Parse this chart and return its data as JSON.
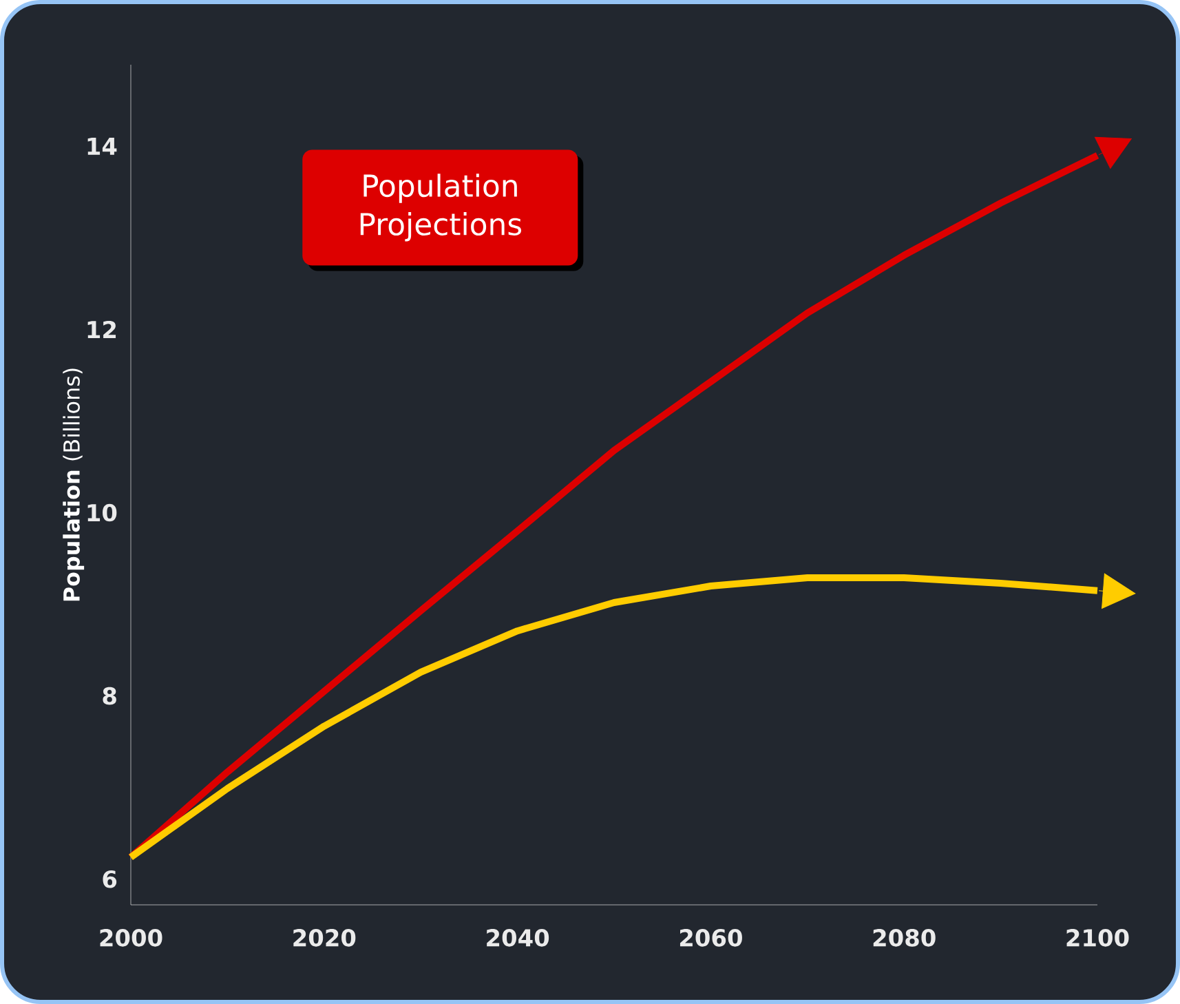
{
  "chart_data": {
    "type": "line",
    "title": "Population Projections",
    "ylabel": "**Population** (Billions)",
    "x": [
      2000,
      2010,
      2020,
      2030,
      2040,
      2050,
      2060,
      2070,
      2080,
      2090,
      2100
    ],
    "series": [
      {
        "color": "#dd0000",
        "values": [
          6.24,
          7.17,
          8.05,
          8.93,
          9.8,
          10.68,
          11.43,
          12.18,
          12.81,
          13.38,
          13.9
        ]
      },
      {
        "color": "#ffcc00",
        "values": [
          6.24,
          6.99,
          7.67,
          8.26,
          8.71,
          9.02,
          9.2,
          9.29,
          9.29,
          9.23,
          9.15
        ]
      }
    ],
    "xlim": [
      2000,
      2100
    ],
    "ylim": [
      5.72,
      14.89
    ],
    "xticks": [
      2000,
      2020,
      2040,
      2060,
      2080,
      2100
    ],
    "yticks": [
      6,
      8,
      10,
      12,
      14
    ],
    "marker": "none",
    "line_style": "solid"
  }
}
